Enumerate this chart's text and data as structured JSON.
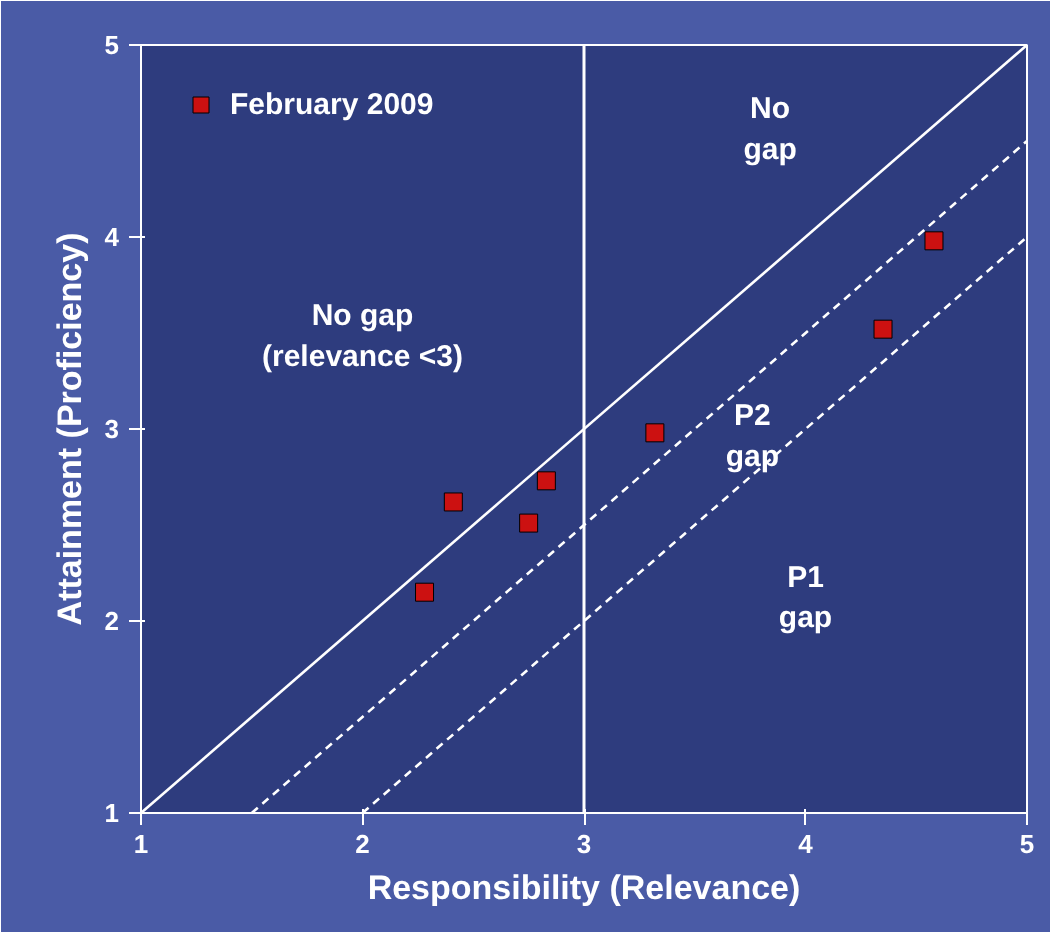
{
  "chart_data": {
    "type": "scatter",
    "xlabel": "Responsibility (Relevance)",
    "ylabel": "Attainment (Proficiency)",
    "xlim": [
      1,
      5
    ],
    "ylim": [
      1,
      5
    ],
    "xticks": [
      1,
      2,
      3,
      4,
      5
    ],
    "yticks": [
      1,
      2,
      3,
      4,
      5
    ],
    "grid": false,
    "legend": "top left",
    "series": [
      {
        "name": "February 2009",
        "marker": "square",
        "color": "#cc1111",
        "x": [
          2.28,
          2.41,
          2.75,
          2.83,
          3.32,
          4.35,
          4.58
        ],
        "values": [
          2.15,
          2.62,
          2.51,
          2.73,
          2.98,
          3.52,
          3.98
        ]
      },
      {
        "type": "line",
        "marker": "none",
        "color": "#ffffff",
        "line_style": "solid",
        "x": [
          1,
          5
        ],
        "values": [
          1,
          5
        ]
      },
      {
        "type": "line",
        "marker": "none",
        "color": "#ffffff",
        "line_style": "dashed",
        "x": [
          1.5,
          5
        ],
        "values": [
          1,
          4.5
        ]
      },
      {
        "type": "line",
        "marker": "none",
        "color": "#ffffff",
        "line_style": "dashed",
        "x": [
          2,
          5
        ],
        "values": [
          1,
          4
        ]
      }
    ],
    "ref_lines": [
      {
        "axis": "x",
        "value": 3,
        "color": "#ffffff"
      }
    ],
    "annotations": [
      "No\ngap",
      "No gap\n(relevance <3)",
      "P2\ngap",
      "P1\ngap"
    ]
  }
}
